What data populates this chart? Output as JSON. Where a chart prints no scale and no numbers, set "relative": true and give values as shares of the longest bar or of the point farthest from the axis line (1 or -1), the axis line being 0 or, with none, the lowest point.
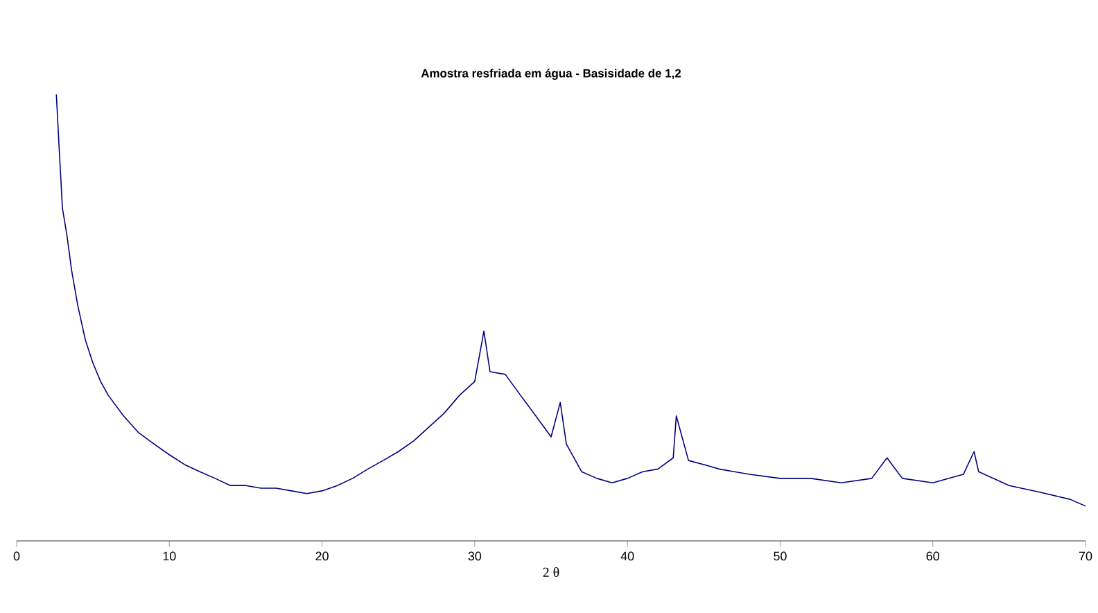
{
  "chart_data": {
    "type": "line",
    "title": "Amostra resfriada em água - Basisidade de 1,2",
    "xlabel": "2 θ",
    "relative": true,
    "xlim": [
      0,
      70
    ],
    "xticks": [
      0,
      10,
      20,
      30,
      40,
      50,
      60,
      70
    ],
    "grid": false,
    "marker": "none",
    "line_style": "solid",
    "series": [
      {
        "color": "#000080",
        "x": [
          2.6,
          2.8,
          3.0,
          3.3,
          3.6,
          4.0,
          4.5,
          5,
          5.5,
          6,
          7,
          8,
          9,
          10,
          11,
          12,
          13,
          14,
          15,
          16,
          17,
          18,
          19,
          20,
          21,
          22,
          23,
          24,
          25,
          26,
          27,
          28,
          29,
          30,
          30.6,
          31,
          32,
          33,
          34,
          35,
          35.6,
          36,
          37,
          38,
          39,
          40,
          41,
          42,
          43,
          43.2,
          44,
          45,
          46,
          47,
          48,
          50,
          52,
          54,
          56,
          57,
          58,
          60,
          62,
          62.7,
          63,
          65,
          67,
          69,
          70
        ],
        "values": [
          1.0,
          0.87,
          0.745,
          0.683,
          0.606,
          0.528,
          0.45,
          0.398,
          0.357,
          0.326,
          0.28,
          0.242,
          0.217,
          0.193,
          0.171,
          0.155,
          0.14,
          0.124,
          0.124,
          0.118,
          0.118,
          0.112,
          0.106,
          0.112,
          0.124,
          0.14,
          0.161,
          0.18,
          0.2,
          0.224,
          0.255,
          0.286,
          0.326,
          0.357,
          0.47,
          0.379,
          0.373,
          0.326,
          0.28,
          0.233,
          0.31,
          0.217,
          0.155,
          0.14,
          0.13,
          0.14,
          0.155,
          0.161,
          0.186,
          0.28,
          0.18,
          0.171,
          0.161,
          0.155,
          0.149,
          0.14,
          0.14,
          0.13,
          0.14,
          0.186,
          0.14,
          0.13,
          0.149,
          0.2,
          0.155,
          0.124,
          0.109,
          0.093,
          0.078
        ]
      }
    ]
  }
}
